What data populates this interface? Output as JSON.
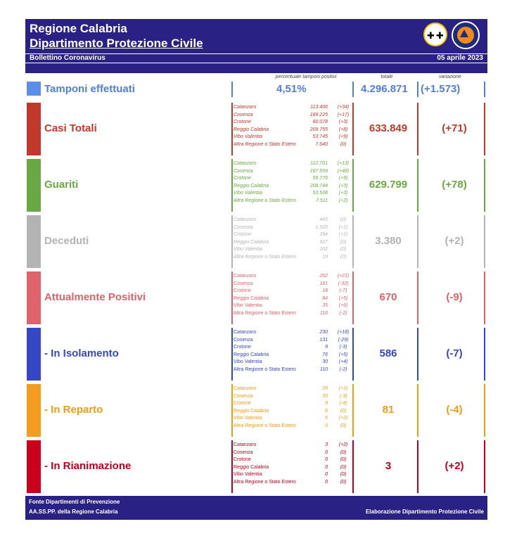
{
  "header": {
    "title1": "Regione Calabria",
    "title2": "Dipartimento Protezione Civile",
    "bulletin": "Bollettino Coronavirus",
    "date": "05 aprile 2023"
  },
  "column_headers": {
    "percent": "percentuale tamponi positivi",
    "total": "totale",
    "variation": "variazione"
  },
  "tamponi": {
    "label": "Tamponi effettuati",
    "percent": "4,51%",
    "total": "4.296.871",
    "variation": "(+1.573)",
    "color": "#4f7fd9"
  },
  "sections": [
    {
      "id": "casi",
      "label": "Casi Totali",
      "color": "#c0392b",
      "swatch": "#c0392b",
      "italic": true,
      "total": "633.849",
      "variation": "(+71)",
      "rows": [
        {
          "prov": "Catanzaro",
          "val": "113.406",
          "var": "(+34)"
        },
        {
          "prov": "Cosenza",
          "val": "189.225",
          "var": "(+17)"
        },
        {
          "prov": "Crotone",
          "val": "60.078",
          "var": "(+3)"
        },
        {
          "prov": "Reggio Calabria",
          "val": "209.755",
          "var": "(+8)"
        },
        {
          "prov": "Vibo Valentia",
          "val": "53.745",
          "var": "(+9)"
        },
        {
          "prov": "Altra Regione o Stato Estero",
          "val": "7.640",
          "var": "(0)"
        }
      ]
    },
    {
      "id": "guariti",
      "label": "Guariti",
      "color": "#6aa843",
      "swatch": "#6aa843",
      "italic": true,
      "total": "629.799",
      "variation": "(+78)",
      "rows": [
        {
          "prov": "Catanzaro",
          "val": "112.701",
          "var": "(+13)"
        },
        {
          "prov": "Cosenza",
          "val": "187.559",
          "var": "(+48)"
        },
        {
          "prov": "Crotone",
          "val": "59.776",
          "var": "(+9)"
        },
        {
          "prov": "Reggio Calabria",
          "val": "208.744",
          "var": "(+3)"
        },
        {
          "prov": "Vibo Valentia",
          "val": "53.508",
          "var": "(+3)"
        },
        {
          "prov": "Altra Regione o Stato Estero",
          "val": "7.511",
          "var": "(+2)"
        }
      ]
    },
    {
      "id": "deceduti",
      "label": "Deceduti",
      "color": "#b3b3b3",
      "swatch": "#b3b3b3",
      "italic": true,
      "total": "3.380",
      "variation": "(+2)",
      "rows": [
        {
          "prov": "Catanzaro",
          "val": "443",
          "var": "(0)"
        },
        {
          "prov": "Cosenza",
          "val": "1.505",
          "var": "(+1)"
        },
        {
          "prov": "Crotone",
          "val": "284",
          "var": "(+1)"
        },
        {
          "prov": "Reggio Calabria",
          "val": "927",
          "var": "(0)"
        },
        {
          "prov": "Vibo Valentia",
          "val": "202",
          "var": "(0)"
        },
        {
          "prov": "Altra Regione o Stato Estero",
          "val": "19",
          "var": "(0)"
        }
      ]
    },
    {
      "id": "positivi",
      "label": "Attualmente Positivi",
      "color": "#e0626a",
      "swatch": "#e0626a",
      "italic": false,
      "total": "670",
      "variation": "(-9)",
      "rows": [
        {
          "prov": "Catanzaro",
          "val": "262",
          "var": "(+21)"
        },
        {
          "prov": "Cosenza",
          "val": "161",
          "var": "(-32)"
        },
        {
          "prov": "Crotone",
          "val": "18",
          "var": "(-7)"
        },
        {
          "prov": "Reggio Calabria",
          "val": "84",
          "var": "(+5)"
        },
        {
          "prov": "Vibo Valentia",
          "val": "35",
          "var": "(+6)"
        },
        {
          "prov": "Altra Regione o Stato Estero",
          "val": "110",
          "var": "(-2)"
        }
      ]
    },
    {
      "id": "isolamento",
      "label": " - In Isolamento",
      "color": "#3447c4",
      "swatch": "#3447c4",
      "italic": false,
      "total": "586",
      "variation": "(-7)",
      "rows": [
        {
          "prov": "Catanzaro",
          "val": "230",
          "var": "(+18)"
        },
        {
          "prov": "Cosenza",
          "val": "131",
          "var": "(-29)"
        },
        {
          "prov": "Crotone",
          "val": "9",
          "var": "(-3)"
        },
        {
          "prov": "Reggio Calabria",
          "val": "76",
          "var": "(+5)"
        },
        {
          "prov": "Vibo Valentia",
          "val": "30",
          "var": "(+4)"
        },
        {
          "prov": "Altra Regione o Stato Estero",
          "val": "110",
          "var": "(-2)"
        }
      ]
    },
    {
      "id": "reparto",
      "label": " - In Reparto",
      "color": "#f39c12",
      "swatch": "#f39c1f",
      "italic": false,
      "total": "81",
      "variation": "(-4)",
      "rows": [
        {
          "prov": "Catanzaro",
          "val": "29",
          "var": "(+1)"
        },
        {
          "prov": "Cosenza",
          "val": "30",
          "var": "(-3)"
        },
        {
          "prov": "Crotone",
          "val": "9",
          "var": "(-4)"
        },
        {
          "prov": "Reggio Calabria",
          "val": "8",
          "var": "(0)"
        },
        {
          "prov": "Vibo Valentia",
          "val": "5",
          "var": "(+2)"
        },
        {
          "prov": "Altra Regione o Stato Estero",
          "val": "0",
          "var": "(0)"
        }
      ]
    },
    {
      "id": "rianimazione",
      "label": " - In Rianimazione",
      "color": "#c0001b",
      "swatch": "#c8001c",
      "italic": false,
      "total": "3",
      "variation": "(+2)",
      "rows": [
        {
          "prov": "Catanzaro",
          "val": "3",
          "var": "(+2)"
        },
        {
          "prov": "Cosenza",
          "val": "0",
          "var": "(0)"
        },
        {
          "prov": "Crotone",
          "val": "0",
          "var": "(0)"
        },
        {
          "prov": "Reggio Calabria",
          "val": "0",
          "var": "(0)"
        },
        {
          "prov": "Vibo Valentia",
          "val": "0",
          "var": "(0)"
        },
        {
          "prov": "Altra Regione o Stato Estero",
          "val": "0",
          "var": "(0)"
        }
      ]
    }
  ],
  "footer": {
    "source1": "Fonte Dipartimenti di Prevenzione",
    "source2": "AA.SS.PP.  della Regione Calabria",
    "credit": "Elaborazione Dipartimento Protezione Civile"
  },
  "icons": [
    "calabria-coat-of-arms-icon",
    "protezione-civile-logo-icon"
  ]
}
